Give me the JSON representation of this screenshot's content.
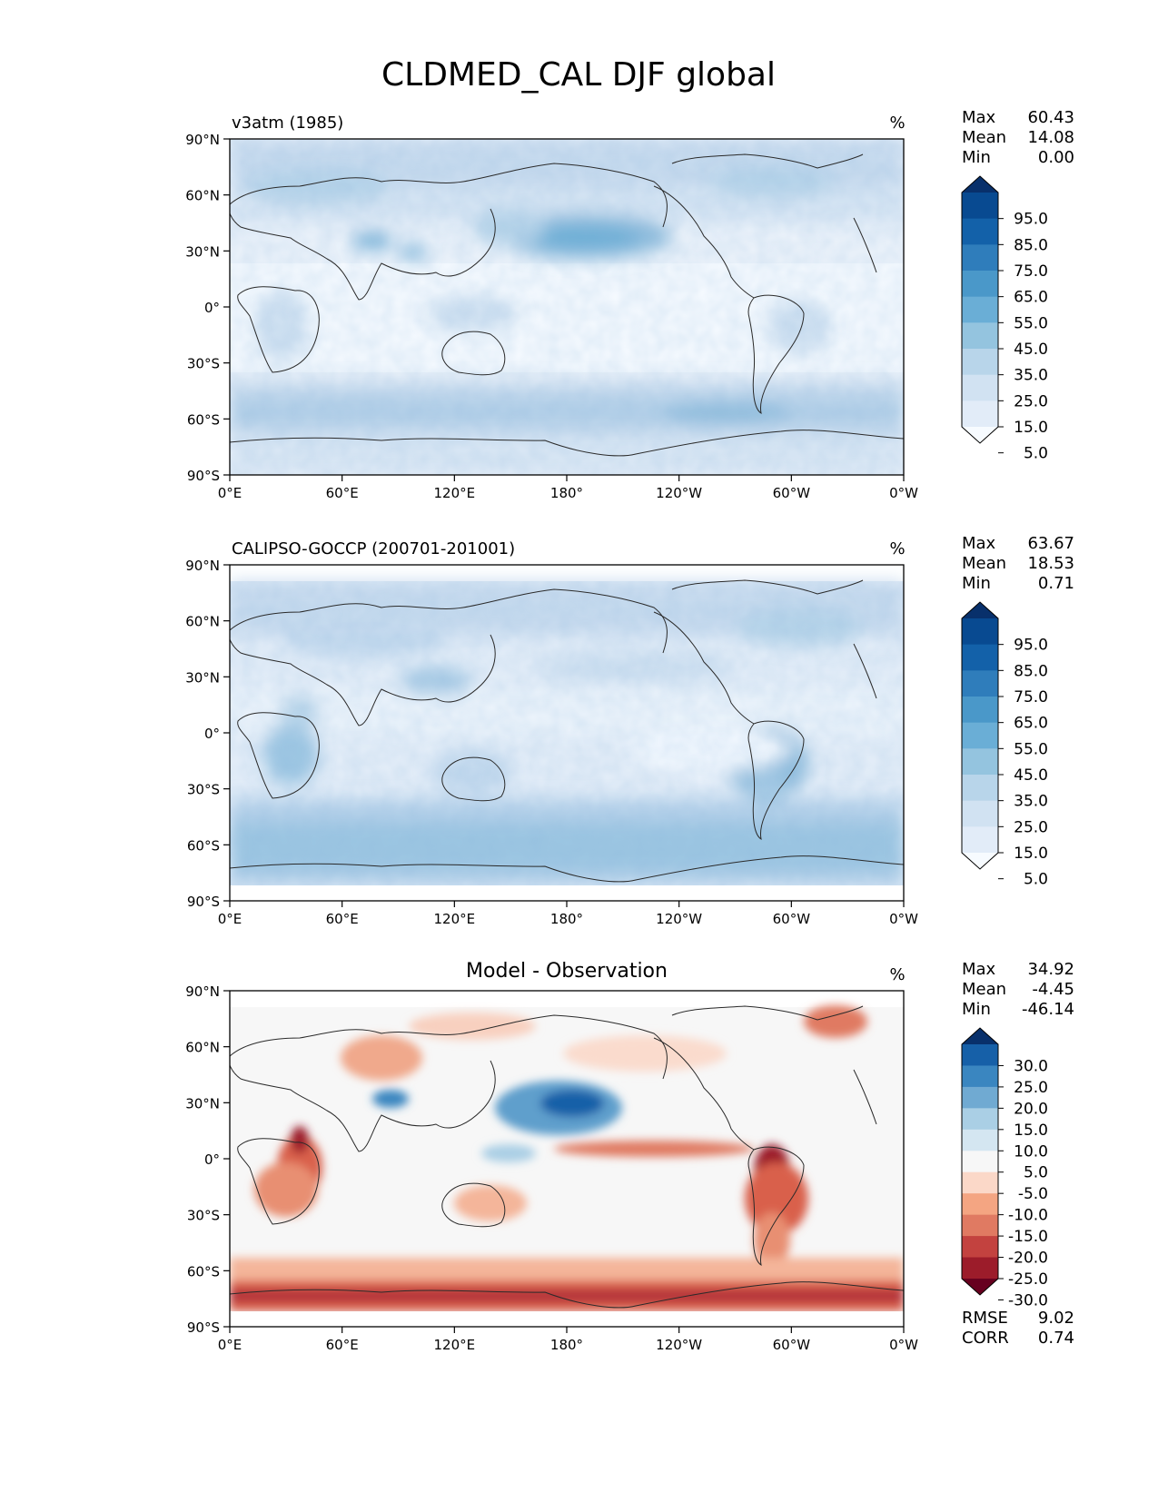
{
  "title": "CLDMED_CAL DJF global",
  "panels": [
    {
      "id": "model",
      "left_label": "v3atm (1985)",
      "center_label": "",
      "units": "%",
      "stats": [
        {
          "label": "Max",
          "value": "60.43"
        },
        {
          "label": "Mean",
          "value": "14.08"
        },
        {
          "label": "Min",
          "value": "0.00"
        }
      ],
      "colorbar": {
        "labels": [
          "95.0",
          "85.0",
          "75.0",
          "65.0",
          "55.0",
          "45.0",
          "35.0",
          "25.0",
          "15.0",
          "5.0"
        ],
        "colors": [
          "#08306b",
          "#084a91",
          "#1361a9",
          "#2f7dbb",
          "#4a98c9",
          "#6aaed6",
          "#94c4df",
          "#b8d5ea",
          "#d1e2f2",
          "#e2ecf8",
          "#f7fbff"
        ],
        "extend": "both"
      },
      "metrics": []
    },
    {
      "id": "obs",
      "left_label": "CALIPSO-GOCCP (200701-201001)",
      "center_label": "",
      "units": "%",
      "stats": [
        {
          "label": "Max",
          "value": "63.67"
        },
        {
          "label": "Mean",
          "value": "18.53"
        },
        {
          "label": "Min",
          "value": "0.71"
        }
      ],
      "colorbar": {
        "labels": [
          "95.0",
          "85.0",
          "75.0",
          "65.0",
          "55.0",
          "45.0",
          "35.0",
          "25.0",
          "15.0",
          "5.0"
        ],
        "colors": [
          "#08306b",
          "#084a91",
          "#1361a9",
          "#2f7dbb",
          "#4a98c9",
          "#6aaed6",
          "#94c4df",
          "#b8d5ea",
          "#d1e2f2",
          "#e2ecf8",
          "#f7fbff"
        ],
        "extend": "both"
      },
      "metrics": []
    },
    {
      "id": "diff",
      "left_label": "",
      "center_label": "Model - Observation",
      "units": "%",
      "stats": [
        {
          "label": "Max",
          "value": "34.92"
        },
        {
          "label": "Mean",
          "value": "-4.45"
        },
        {
          "label": "Min",
          "value": "-46.14"
        }
      ],
      "colorbar": {
        "labels": [
          "30.0",
          "25.0",
          "20.0",
          "15.0",
          "10.0",
          "5.0",
          "-5.0",
          "-10.0",
          "-15.0",
          "-20.0",
          "-25.0",
          "-30.0"
        ],
        "colors": [
          "#08306b",
          "#1660a8",
          "#3a86c0",
          "#70aad2",
          "#aacfe5",
          "#d4e6f1",
          "#f7f7f7",
          "#fbd8c8",
          "#f4a582",
          "#e07a62",
          "#c3423f",
          "#9c1c2a",
          "#67001f"
        ],
        "extend": "both"
      },
      "metrics": [
        {
          "label": "RMSE",
          "value": "9.02"
        },
        {
          "label": "CORR",
          "value": "0.74"
        }
      ]
    }
  ],
  "axes": {
    "lat_ticks": [
      "90°N",
      "60°N",
      "30°N",
      "0°",
      "30°S",
      "60°S",
      "90°S"
    ],
    "lon_ticks": [
      "0°E",
      "60°E",
      "120°E",
      "180°",
      "120°W",
      "60°W",
      "0°W"
    ]
  },
  "colors": {
    "frame": "#000000",
    "coast": "#2a2a2a"
  }
}
